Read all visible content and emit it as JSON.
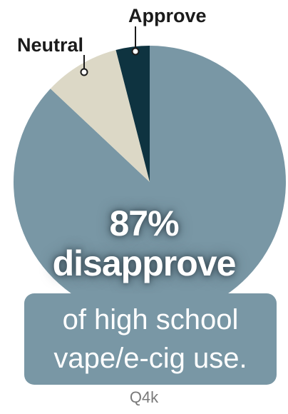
{
  "chart_data": {
    "type": "pie",
    "slices": [
      {
        "label": "",
        "value": 87,
        "color": "#7997a5"
      },
      {
        "label": "Neutral",
        "value": 9,
        "color": "#dcd8c6"
      },
      {
        "label": "Approve",
        "value": 4,
        "color": "#0e3340"
      }
    ],
    "headline_value": "87%",
    "headline_word": "disapprove",
    "caption_lines": [
      "of high school",
      "vape/e-cig use."
    ]
  },
  "source_code": "Q4k",
  "colors": {
    "disapprove": "#7997a5",
    "neutral": "#dcd8c6",
    "approve": "#0e3340",
    "caption_box": "#7997a5"
  }
}
